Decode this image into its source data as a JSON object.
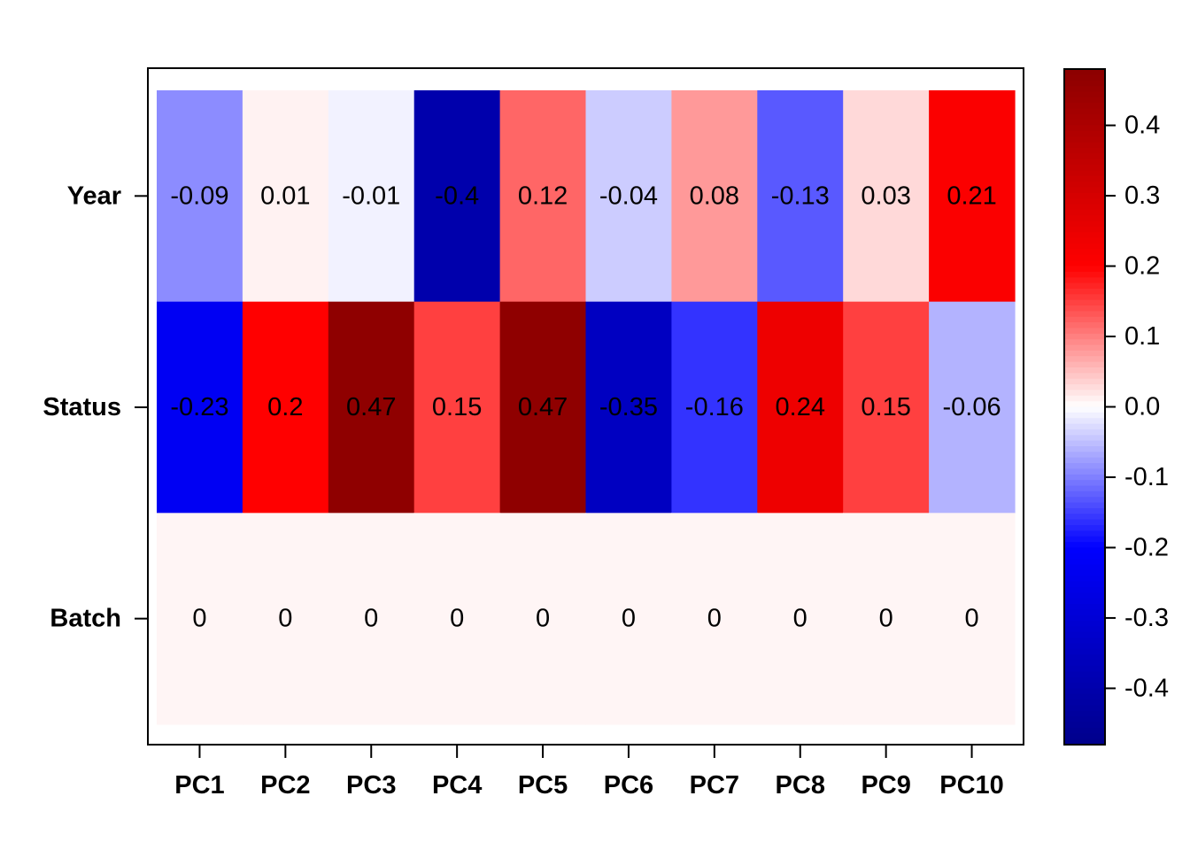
{
  "chart_data": {
    "type": "heatmap",
    "rows": [
      "Year",
      "Status",
      "Batch"
    ],
    "columns": [
      "PC1",
      "PC2",
      "PC3",
      "PC4",
      "PC5",
      "PC6",
      "PC7",
      "PC8",
      "PC9",
      "PC10"
    ],
    "values": [
      [
        -0.09,
        0.01,
        -0.01,
        -0.4,
        0.12,
        -0.04,
        0.08,
        -0.13,
        0.03,
        0.21
      ],
      [
        -0.23,
        0.2,
        0.47,
        0.15,
        0.47,
        -0.35,
        -0.16,
        0.24,
        0.15,
        -0.06
      ],
      [
        0,
        0,
        0,
        0,
        0,
        0,
        0,
        0,
        0,
        0
      ]
    ],
    "cell_labels": [
      [
        "-0.09",
        "0.01",
        "-0.01",
        "-0.4",
        "0.12",
        "-0.04",
        "0.08",
        "-0.13",
        "0.03",
        "0.21"
      ],
      [
        "-0.23",
        "0.2",
        "0.47",
        "0.15",
        "0.47",
        "-0.35",
        "-0.16",
        "0.24",
        "0.15",
        "-0.06"
      ],
      [
        "0",
        "0",
        "0",
        "0",
        "0",
        "0",
        "0",
        "0",
        "0",
        "0"
      ]
    ],
    "colorbar": {
      "range": [
        -0.48,
        0.48
      ],
      "ticks": [
        0.4,
        0.3,
        0.2,
        0.1,
        0.0,
        -0.1,
        -0.2,
        -0.3,
        -0.4
      ],
      "tick_labels": [
        "0.4",
        "0.3",
        "0.2",
        "0.1",
        "0.0",
        "-0.1",
        "-0.2",
        "-0.3",
        "-0.4"
      ],
      "colors": {
        "neg_dark": "#00008B",
        "neg_mid": "#0000FF",
        "neutral": "#FFFFFF",
        "pos_mid": "#FF0000",
        "pos_dark": "#8B0000"
      }
    },
    "title": "",
    "xlabel": "",
    "ylabel": ""
  }
}
